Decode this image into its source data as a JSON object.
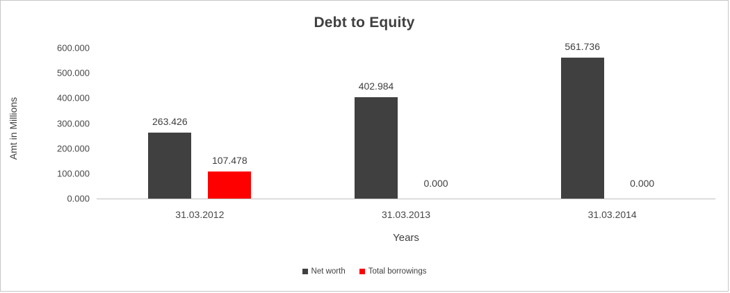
{
  "chart": {
    "title": "Debt to Equity",
    "ylabel": "Amt in Millions",
    "xlabel": "Years"
  },
  "chart_data": {
    "type": "bar",
    "title": "Debt to Equity",
    "categories": [
      "31.03.2012",
      "31.03.2013",
      "31.03.2014"
    ],
    "series": [
      {
        "name": "Net worth",
        "color": "#404040",
        "values": [
          263.426,
          402.984,
          561.736
        ]
      },
      {
        "name": "Total borrowings",
        "color": "#ff0000",
        "values": [
          107.478,
          0.0,
          0.0
        ]
      }
    ],
    "value_labels": [
      [
        "263.426",
        "402.984",
        "561.736"
      ],
      [
        "107.478",
        "0.000",
        "0.000"
      ]
    ],
    "xlabel": "Years",
    "ylabel": "Amt in Millions",
    "ylim": [
      0,
      600
    ],
    "ytick_step": 100,
    "ytick_labels": [
      "0.000",
      "100.000",
      "200.000",
      "300.000",
      "400.000",
      "500.000",
      "600.000"
    ],
    "grid": false,
    "legend_position": "bottom"
  }
}
